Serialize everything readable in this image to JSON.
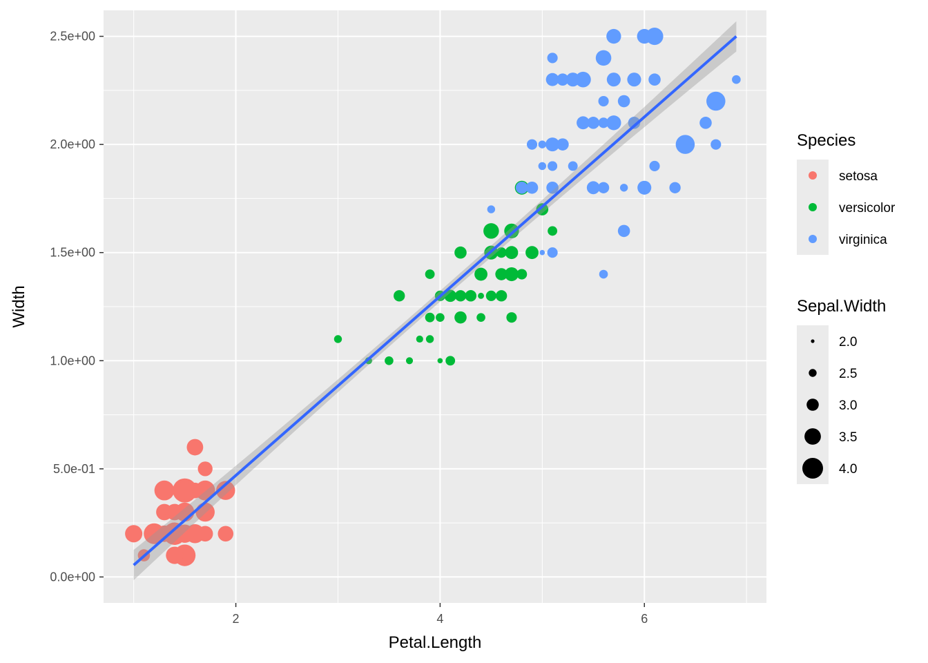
{
  "chart_data": {
    "type": "scatter",
    "xlabel": "Petal.Length",
    "ylabel": "Width",
    "xlim": [
      0.705,
      7.195
    ],
    "ylim": [
      -0.12,
      2.62
    ],
    "x_ticks": [
      2,
      4,
      6
    ],
    "x_tick_labels": [
      "2",
      "4",
      "6"
    ],
    "y_ticks": [
      0,
      0.5,
      1.0,
      1.5,
      2.0,
      2.5
    ],
    "y_tick_labels": [
      "0.0e+00",
      "5.0e-01",
      "1.0e+00",
      "1.5e+00",
      "2.0e+00",
      "2.5e+00"
    ],
    "grid": true,
    "legend_position": "right",
    "colors": {
      "panel_background": "#ebebeb",
      "grid": "#ffffff",
      "setosa": "#f8766d",
      "versicolor": "#00ba38",
      "virginica": "#619cff",
      "fit_line": "#3366ff",
      "confidence_band": "#999999"
    },
    "color_legend": {
      "title": "Species",
      "entries": [
        "setosa",
        "versicolor",
        "virginica"
      ]
    },
    "size_legend": {
      "title": "Sepal.Width",
      "entries": [
        "2.0",
        "2.5",
        "3.0",
        "3.5",
        "4.0"
      ],
      "values": [
        2.0,
        2.5,
        3.0,
        3.5,
        4.0
      ]
    },
    "fit_line": {
      "x_start": 1.0,
      "y_start": 0.055,
      "x_end": 6.9,
      "y_end": 2.5,
      "se_half_width_mid": 0.025,
      "se_half_width_end": 0.07
    },
    "series": [
      {
        "name": "setosa",
        "points": [
          [
            1.4,
            0.2,
            3.5
          ],
          [
            1.4,
            0.2,
            3.0
          ],
          [
            1.3,
            0.2,
            3.2
          ],
          [
            1.5,
            0.2,
            3.1
          ],
          [
            1.4,
            0.2,
            3.6
          ],
          [
            1.7,
            0.4,
            3.9
          ],
          [
            1.4,
            0.3,
            3.4
          ],
          [
            1.5,
            0.2,
            3.4
          ],
          [
            1.4,
            0.2,
            2.9
          ],
          [
            1.5,
            0.1,
            3.1
          ],
          [
            1.5,
            0.2,
            3.7
          ],
          [
            1.6,
            0.2,
            3.4
          ],
          [
            1.4,
            0.1,
            3.0
          ],
          [
            1.1,
            0.1,
            3.0
          ],
          [
            1.2,
            0.2,
            4.0
          ],
          [
            1.5,
            0.4,
            4.4
          ],
          [
            1.3,
            0.4,
            3.9
          ],
          [
            1.4,
            0.3,
            3.5
          ],
          [
            1.7,
            0.3,
            3.8
          ],
          [
            1.5,
            0.3,
            3.8
          ],
          [
            1.7,
            0.2,
            3.4
          ],
          [
            1.5,
            0.4,
            3.7
          ],
          [
            1.0,
            0.2,
            3.6
          ],
          [
            1.7,
            0.5,
            3.3
          ],
          [
            1.9,
            0.2,
            3.4
          ],
          [
            1.6,
            0.2,
            3.0
          ],
          [
            1.6,
            0.4,
            3.4
          ],
          [
            1.5,
            0.2,
            3.5
          ],
          [
            1.4,
            0.2,
            3.4
          ],
          [
            1.6,
            0.2,
            3.2
          ],
          [
            1.6,
            0.2,
            3.1
          ],
          [
            1.5,
            0.4,
            3.4
          ],
          [
            1.5,
            0.1,
            4.1
          ],
          [
            1.4,
            0.2,
            4.2
          ],
          [
            1.5,
            0.2,
            3.1
          ],
          [
            1.2,
            0.2,
            3.2
          ],
          [
            1.3,
            0.2,
            3.5
          ],
          [
            1.4,
            0.1,
            3.6
          ],
          [
            1.3,
            0.2,
            3.0
          ],
          [
            1.5,
            0.2,
            3.4
          ],
          [
            1.3,
            0.3,
            3.5
          ],
          [
            1.3,
            0.3,
            2.3
          ],
          [
            1.3,
            0.2,
            3.2
          ],
          [
            1.6,
            0.6,
            3.5
          ],
          [
            1.9,
            0.4,
            3.8
          ],
          [
            1.4,
            0.3,
            3.0
          ],
          [
            1.6,
            0.2,
            3.8
          ],
          [
            1.4,
            0.2,
            3.2
          ],
          [
            1.5,
            0.2,
            3.7
          ],
          [
            1.4,
            0.2,
            3.3
          ]
        ]
      },
      {
        "name": "versicolor",
        "points": [
          [
            4.7,
            1.4,
            3.2
          ],
          [
            4.5,
            1.5,
            3.2
          ],
          [
            4.9,
            1.5,
            3.1
          ],
          [
            4.0,
            1.3,
            2.3
          ],
          [
            4.6,
            1.5,
            2.8
          ],
          [
            4.5,
            1.3,
            2.8
          ],
          [
            4.7,
            1.6,
            3.3
          ],
          [
            3.3,
            1.0,
            2.4
          ],
          [
            4.6,
            1.3,
            2.9
          ],
          [
            3.9,
            1.4,
            2.7
          ],
          [
            3.5,
            1.0,
            2.0
          ],
          [
            4.2,
            1.5,
            3.0
          ],
          [
            4.0,
            1.0,
            2.2
          ],
          [
            4.7,
            1.4,
            2.9
          ],
          [
            3.6,
            1.3,
            2.9
          ],
          [
            4.4,
            1.4,
            3.1
          ],
          [
            4.5,
            1.5,
            3.0
          ],
          [
            4.1,
            1.0,
            2.7
          ],
          [
            4.5,
            1.5,
            2.2
          ],
          [
            3.9,
            1.1,
            2.5
          ],
          [
            4.8,
            1.8,
            3.2
          ],
          [
            4.0,
            1.3,
            2.8
          ],
          [
            4.9,
            1.5,
            2.5
          ],
          [
            4.7,
            1.2,
            2.8
          ],
          [
            4.3,
            1.3,
            2.9
          ],
          [
            4.4,
            1.4,
            3.0
          ],
          [
            4.8,
            1.4,
            2.8
          ],
          [
            5.0,
            1.7,
            3.0
          ],
          [
            4.5,
            1.5,
            2.9
          ],
          [
            3.5,
            1.0,
            2.6
          ],
          [
            3.8,
            1.1,
            2.4
          ],
          [
            3.7,
            1.0,
            2.4
          ],
          [
            3.9,
            1.2,
            2.7
          ],
          [
            5.1,
            1.6,
            2.7
          ],
          [
            4.5,
            1.5,
            3.0
          ],
          [
            4.5,
            1.6,
            3.4
          ],
          [
            4.7,
            1.5,
            3.1
          ],
          [
            4.4,
            1.3,
            2.3
          ],
          [
            4.1,
            1.3,
            3.0
          ],
          [
            4.0,
            1.3,
            2.5
          ],
          [
            4.4,
            1.2,
            2.6
          ],
          [
            4.6,
            1.4,
            3.0
          ],
          [
            4.0,
            1.2,
            2.6
          ],
          [
            3.3,
            1.0,
            2.3
          ],
          [
            4.2,
            1.3,
            2.7
          ],
          [
            4.2,
            1.2,
            3.0
          ],
          [
            4.2,
            1.3,
            2.9
          ],
          [
            4.3,
            1.3,
            2.9
          ],
          [
            3.0,
            1.1,
            2.5
          ],
          [
            4.1,
            1.3,
            2.8
          ]
        ]
      },
      {
        "name": "virginica",
        "points": [
          [
            6.0,
            2.5,
            3.3
          ],
          [
            5.1,
            1.9,
            2.7
          ],
          [
            5.9,
            2.1,
            3.0
          ],
          [
            5.6,
            1.8,
            2.9
          ],
          [
            5.8,
            2.2,
            3.0
          ],
          [
            6.6,
            2.1,
            3.0
          ],
          [
            4.5,
            1.7,
            2.5
          ],
          [
            6.3,
            1.8,
            2.9
          ],
          [
            5.8,
            1.8,
            2.5
          ],
          [
            6.1,
            2.5,
            3.6
          ],
          [
            5.1,
            2.0,
            3.2
          ],
          [
            5.3,
            1.9,
            2.7
          ],
          [
            5.5,
            2.1,
            3.0
          ],
          [
            5.0,
            2.0,
            2.5
          ],
          [
            5.1,
            2.4,
            2.8
          ],
          [
            5.3,
            2.3,
            3.2
          ],
          [
            5.5,
            1.8,
            3.0
          ],
          [
            6.7,
            2.2,
            3.8
          ],
          [
            6.9,
            2.3,
            2.6
          ],
          [
            5.0,
            1.5,
            2.2
          ],
          [
            5.7,
            2.3,
            3.2
          ],
          [
            4.9,
            2.0,
            2.8
          ],
          [
            6.7,
            2.0,
            2.8
          ],
          [
            4.9,
            1.8,
            2.7
          ],
          [
            5.7,
            2.1,
            3.3
          ],
          [
            6.0,
            1.8,
            3.2
          ],
          [
            4.8,
            1.8,
            2.8
          ],
          [
            4.9,
            1.8,
            3.0
          ],
          [
            5.6,
            2.1,
            2.8
          ],
          [
            5.8,
            1.6,
            3.0
          ],
          [
            6.1,
            1.9,
            2.8
          ],
          [
            6.4,
            2.0,
            3.8
          ],
          [
            5.6,
            2.2,
            2.8
          ],
          [
            5.1,
            1.5,
            2.8
          ],
          [
            5.6,
            1.4,
            2.6
          ],
          [
            6.1,
            2.3,
            3.0
          ],
          [
            5.6,
            2.4,
            3.4
          ],
          [
            5.5,
            1.8,
            3.1
          ],
          [
            4.8,
            1.8,
            3.0
          ],
          [
            5.4,
            2.1,
            3.1
          ],
          [
            5.6,
            2.4,
            3.1
          ],
          [
            5.1,
            2.3,
            3.1
          ],
          [
            5.1,
            1.9,
            2.7
          ],
          [
            5.9,
            2.3,
            3.2
          ],
          [
            5.7,
            2.5,
            3.3
          ],
          [
            5.2,
            2.3,
            3.0
          ],
          [
            5.0,
            1.9,
            2.5
          ],
          [
            5.2,
            2.0,
            3.0
          ],
          [
            5.4,
            2.3,
            3.4
          ],
          [
            5.1,
            1.8,
            3.0
          ]
        ]
      }
    ]
  }
}
